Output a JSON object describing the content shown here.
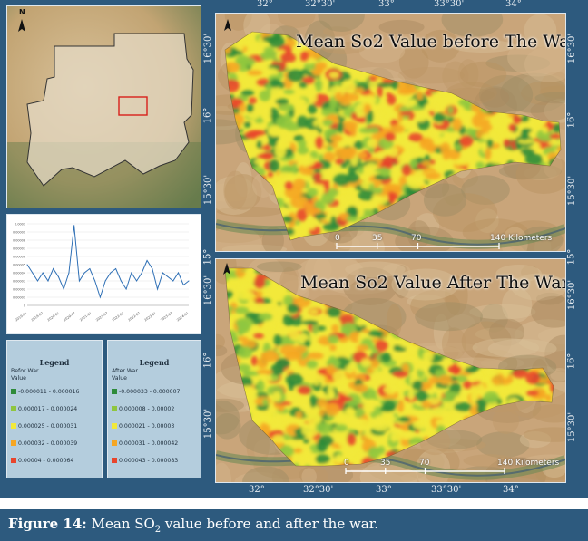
{
  "inset_map": {
    "north_label": "N"
  },
  "chart": {
    "y_ticks": [
      "0.0001",
      "0.00009",
      "0.00008",
      "0.00007",
      "0.00006",
      "0.00005",
      "0.00004",
      "0.00003",
      "0.00002",
      "0.00001",
      "0"
    ],
    "x_ticks": [
      "2019-01",
      "2019-07",
      "2020-01",
      "2020-07",
      "2021-01",
      "2021-07",
      "2022-01",
      "2022-07",
      "2023-01",
      "2023-07",
      "2024-01"
    ]
  },
  "chart_data": {
    "type": "line",
    "title": "",
    "xlabel": "",
    "ylabel": "",
    "ylim": [
      0,
      0.0001
    ],
    "x": [
      "2019-01",
      "2019-03",
      "2019-05",
      "2019-07",
      "2019-09",
      "2019-11",
      "2020-01",
      "2020-03",
      "2020-05",
      "2020-07",
      "2020-09",
      "2020-11",
      "2021-01",
      "2021-03",
      "2021-05",
      "2021-07",
      "2021-09",
      "2021-11",
      "2022-01",
      "2022-03",
      "2022-05",
      "2022-07",
      "2022-09",
      "2022-11",
      "2023-01",
      "2023-03",
      "2023-05",
      "2023-07",
      "2023-09",
      "2023-11",
      "2024-01",
      "2024-03"
    ],
    "series": [
      {
        "values": [
          5e-05,
          4e-05,
          3e-05,
          4e-05,
          3e-05,
          4.5e-05,
          3.5e-05,
          2e-05,
          4e-05,
          9.8e-05,
          3e-05,
          4e-05,
          4.5e-05,
          3e-05,
          1e-05,
          3e-05,
          4e-05,
          4.5e-05,
          3e-05,
          2e-05,
          4e-05,
          3e-05,
          4e-05,
          5.5e-05,
          4.5e-05,
          2e-05,
          4e-05,
          3.5e-05,
          3e-05,
          4e-05,
          2.5e-05,
          3e-05
        ]
      }
    ],
    "grid": true
  },
  "legend_before": {
    "title": "Legend",
    "subtitle": "Befor War",
    "value_label": "Value",
    "classes": [
      {
        "label": "-0.000011 - 0.000016",
        "color": "#2e8b3a"
      },
      {
        "label": "0.000017 - 0.000024",
        "color": "#8fc63f"
      },
      {
        "label": "0.000025 - 0.000031",
        "color": "#f2e93a"
      },
      {
        "label": "0.000032 - 0.000039",
        "color": "#f5a623"
      },
      {
        "label": "0.00004 - 0.000064",
        "color": "#e8452c"
      }
    ]
  },
  "legend_after": {
    "title": "Legend",
    "subtitle": "After War",
    "value_label": "Value",
    "classes": [
      {
        "label": "-0.000033 - 0.000007",
        "color": "#2e8b3a"
      },
      {
        "label": "0.000008 - 0.00002",
        "color": "#8fc63f"
      },
      {
        "label": "0.000021 - 0.00003",
        "color": "#f2e93a"
      },
      {
        "label": "0.000031 - 0.000042",
        "color": "#f5a623"
      },
      {
        "label": "0.000043 - 0.000083",
        "color": "#e8452c"
      }
    ]
  },
  "map_top": {
    "title": "Mean So2 Value before The War",
    "scale": [
      "0",
      "35",
      "70",
      "140 Kilometers"
    ]
  },
  "map_bottom": {
    "title": "Mean So2 Value After The War",
    "scale": [
      "0",
      "35",
      "70",
      "140 Kilometers"
    ]
  },
  "graticule": {
    "top_lons": [
      "32°",
      "32°30'",
      "33°",
      "33°30'",
      "34°"
    ],
    "bottom_lons": [
      "32°",
      "32°30'",
      "33°",
      "33°30'",
      "34°"
    ],
    "left_lats_top": [
      "16°30'",
      "16°",
      "15°30'",
      "15°"
    ],
    "right_lats_top": [
      "16°30'",
      "16°",
      "15°30'",
      "15°"
    ],
    "left_lats_bottom": [
      "16°30'",
      "16°",
      "15°30'"
    ],
    "right_lats_bottom": [
      "16°30'",
      "16°",
      "15°30'"
    ]
  },
  "caption": {
    "figure": "Figure 14:",
    "text_a": " Mean SO",
    "sub": "2",
    "text_b": " value before and after the war."
  },
  "colors": {
    "frame": "#2d5a7e",
    "legend_bg": "#b4cddd",
    "green_dark": "#2e8b3a",
    "green_light": "#8fc63f",
    "yellow": "#f2e93a",
    "orange": "#f5a623",
    "red": "#e8452c"
  }
}
